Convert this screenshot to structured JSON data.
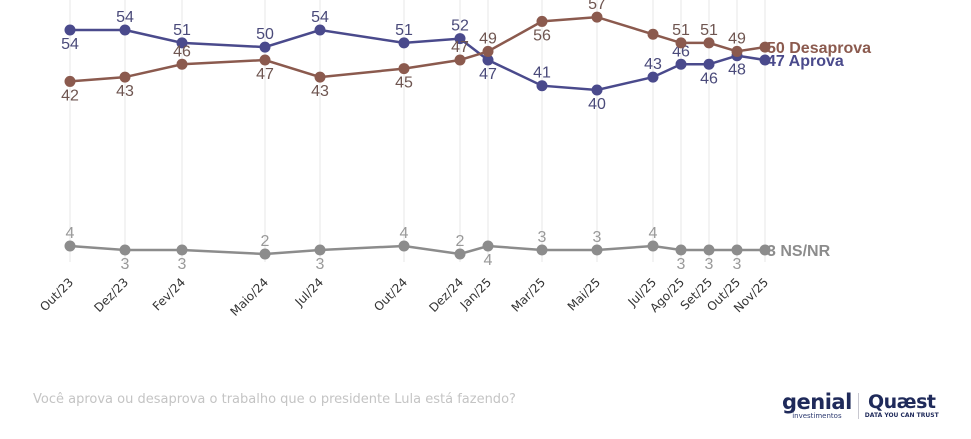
{
  "chart_data": {
    "type": "line",
    "title": "",
    "question": "Você aprova ou desaprova o trabalho que o presidente Lula está fazendo?",
    "xlabel": "",
    "ylabel": "",
    "categories": [
      "Out/23",
      "Dez/23",
      "Fev/24",
      "Maio/24",
      "Jul/24",
      "Out/24",
      "Dez/24",
      "Jan/25",
      "Mar/25",
      "Mai/25",
      "Jul/25",
      "Ago/25",
      "Set/25",
      "Out/25",
      "Nov/25"
    ],
    "ylim": [
      0,
      60
    ],
    "grid": "vertical",
    "series": [
      {
        "name": "Aprova",
        "end_label": "47 Aprova",
        "color": "#4a4a8c",
        "values": [
          54,
          54,
          51,
          50,
          54,
          51,
          52,
          47,
          41,
          40,
          43,
          46,
          46,
          48,
          47
        ],
        "label_pos": [
          "below",
          "above",
          "above",
          "above",
          "above",
          "above",
          "above",
          "below",
          "above",
          "below",
          "above",
          "above",
          "below",
          "below",
          null
        ]
      },
      {
        "name": "Desaprova",
        "end_label": "50 Desaprova",
        "color": "#8b5a4e",
        "values": [
          42,
          43,
          46,
          47,
          43,
          45,
          47,
          49,
          56,
          57,
          53,
          51,
          51,
          49,
          50
        ],
        "label_pos": [
          "below",
          "below",
          "above",
          "below",
          "below",
          "below",
          "above",
          "above",
          "below",
          "above",
          null,
          "above",
          "above",
          "above",
          null
        ]
      },
      {
        "name": "NS/NR",
        "end_label": "3 NS/NR",
        "color": "#8c8c8c",
        "values": [
          4,
          3,
          3,
          2,
          3,
          4,
          2,
          4,
          3,
          3,
          4,
          3,
          3,
          3,
          3
        ],
        "label_pos": [
          "above",
          "below",
          "below",
          "above",
          "below",
          "above",
          "above",
          "below",
          "above",
          "above",
          "above",
          "below",
          "below",
          "below",
          null
        ]
      }
    ]
  },
  "branding": {
    "genial_name": "genial",
    "genial_sub": "investimentos",
    "quaest_name": "Quæst",
    "quaest_sub": "DATA YOU CAN TRUST"
  }
}
